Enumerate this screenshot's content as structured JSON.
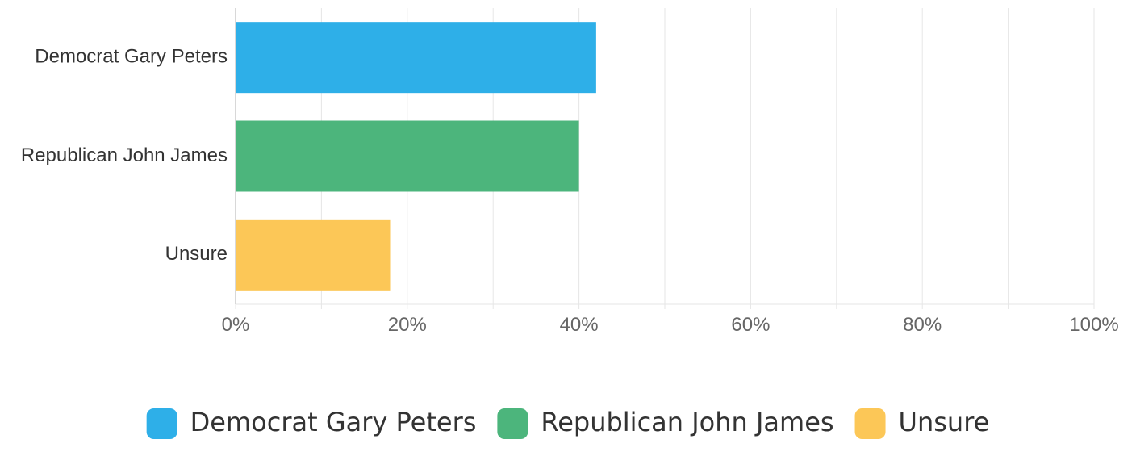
{
  "chart_data": {
    "type": "bar",
    "orientation": "horizontal",
    "categories": [
      "Democrat Gary Peters",
      "Republican John James",
      "Unsure"
    ],
    "values": [
      42,
      40,
      18
    ],
    "colors": [
      "#2EAFE8",
      "#4CB57C",
      "#FCC757"
    ],
    "x_ticks": [
      "0%",
      "20%",
      "40%",
      "60%",
      "80%",
      "100%"
    ],
    "xlim": [
      0,
      100
    ],
    "grid": true,
    "legend": {
      "position": "bottom",
      "entries": [
        {
          "label": "Democrat Gary Peters",
          "color": "#2EAFE8"
        },
        {
          "label": "Republican John James",
          "color": "#4CB57C"
        },
        {
          "label": "Unsure",
          "color": "#FCC757"
        }
      ]
    }
  }
}
